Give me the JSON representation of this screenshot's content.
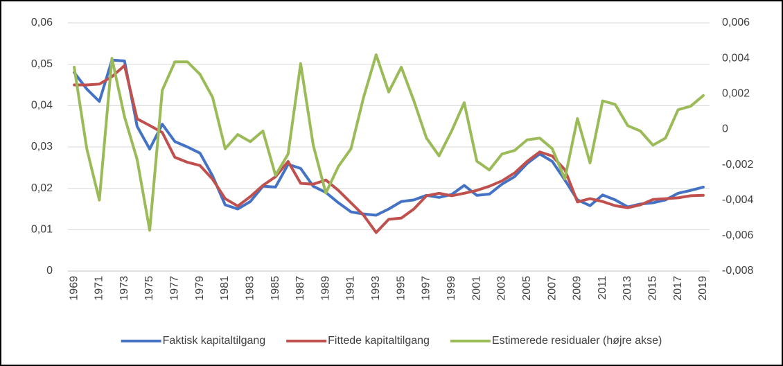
{
  "chart_data": {
    "type": "line",
    "categories": [
      "1969",
      null,
      "1971",
      null,
      "1973",
      null,
      "1975",
      null,
      "1977",
      null,
      "1979",
      null,
      "1981",
      null,
      "1983",
      null,
      "1985",
      null,
      "1987",
      null,
      "1989",
      null,
      "1991",
      null,
      "1993",
      null,
      "1995",
      null,
      "1997",
      null,
      "1999",
      null,
      "2001",
      null,
      "2003",
      null,
      "2005",
      null,
      "2007",
      null,
      "2009",
      null,
      "2011",
      null,
      "2013",
      null,
      "2015",
      null,
      "2017",
      null,
      "2019"
    ],
    "series": [
      {
        "name": "Faktisk kapitaltilgang",
        "color": "#4472c4",
        "values": [
          0.048,
          0.044,
          0.041,
          0.051,
          0.0508,
          0.035,
          0.0295,
          0.0355,
          0.0313,
          0.03,
          0.0285,
          0.023,
          0.016,
          0.015,
          0.0168,
          0.0205,
          0.0203,
          0.0258,
          0.0248,
          0.0205,
          0.019,
          0.0165,
          0.0143,
          0.0138,
          0.0135,
          0.015,
          0.0168,
          0.0172,
          0.0183,
          0.0178,
          0.0185,
          0.0207,
          0.0183,
          0.0186,
          0.021,
          0.0228,
          0.026,
          0.0283,
          0.0265,
          0.022,
          0.0172,
          0.0158,
          0.0184,
          0.0172,
          0.0155,
          0.0162,
          0.0165,
          0.0172,
          0.0188,
          0.0195,
          0.0203
        ]
      },
      {
        "name": "Fittede kapitaltilgang",
        "color": "#c0504d",
        "values": [
          0.045,
          0.045,
          0.0452,
          0.047,
          0.0497,
          0.0368,
          0.0352,
          0.0335,
          0.0275,
          0.0263,
          0.0255,
          0.0222,
          0.0175,
          0.0157,
          0.018,
          0.0207,
          0.0228,
          0.0265,
          0.0212,
          0.021,
          0.022,
          0.0195,
          0.0165,
          0.0135,
          0.0093,
          0.0125,
          0.0128,
          0.015,
          0.0182,
          0.0188,
          0.0182,
          0.0188,
          0.0195,
          0.0205,
          0.0218,
          0.0237,
          0.0265,
          0.0288,
          0.0278,
          0.0245,
          0.0167,
          0.0175,
          0.0168,
          0.0158,
          0.0153,
          0.016,
          0.0173,
          0.0175,
          0.0177,
          0.0182,
          0.0183
        ]
      },
      {
        "name": "Estimerede residualer (højre akse)",
        "color": "#9bbb59",
        "axis": "y2",
        "values": [
          0.0035,
          -0.0011,
          -0.004,
          0.004,
          0.0007,
          -0.0017,
          -0.0057,
          0.0022,
          0.0038,
          0.0038,
          0.0031,
          0.0018,
          -0.0011,
          -0.0003,
          -0.0007,
          -0.0001,
          -0.0026,
          -0.0014,
          0.0037,
          -0.0009,
          -0.0036,
          -0.0021,
          -0.0011,
          0.0018,
          0.0042,
          0.0021,
          0.0035,
          0.0016,
          -0.0005,
          -0.0015,
          -0.0001,
          0.0015,
          -0.0018,
          -0.0023,
          -0.0014,
          -0.0012,
          -0.0006,
          -0.0005,
          -0.0011,
          -0.0028,
          0.0006,
          -0.0019,
          0.0016,
          0.0014,
          0.0002,
          -0.0001,
          -0.0009,
          -0.0005,
          0.0011,
          0.0013,
          0.0019
        ]
      }
    ],
    "ylim": [
      0,
      0.06
    ],
    "yticks": [
      0,
      {
        "value": 0.01,
        "label": "0,01"
      },
      {
        "value": 0.02,
        "label": "0,02"
      },
      {
        "value": 0.03,
        "label": "0,03"
      },
      {
        "value": 0.04,
        "label": "0,04"
      },
      {
        "value": 0.05,
        "label": "0,05"
      },
      {
        "value": 0.06,
        "label": "0,06"
      }
    ],
    "y2lim": [
      -0.008,
      0.006
    ],
    "y2ticks": [
      {
        "value": -0.008,
        "label": "-0,008"
      },
      {
        "value": -0.006,
        "label": "-0,006"
      },
      {
        "value": -0.004,
        "label": "-0,004"
      },
      {
        "value": -0.002,
        "label": "-0,002"
      },
      0,
      {
        "value": 0.002,
        "label": "0,002"
      },
      {
        "value": 0.004,
        "label": "0,004"
      },
      {
        "value": 0.006,
        "label": "0,006"
      }
    ],
    "grid": true,
    "legend": "bottom"
  }
}
